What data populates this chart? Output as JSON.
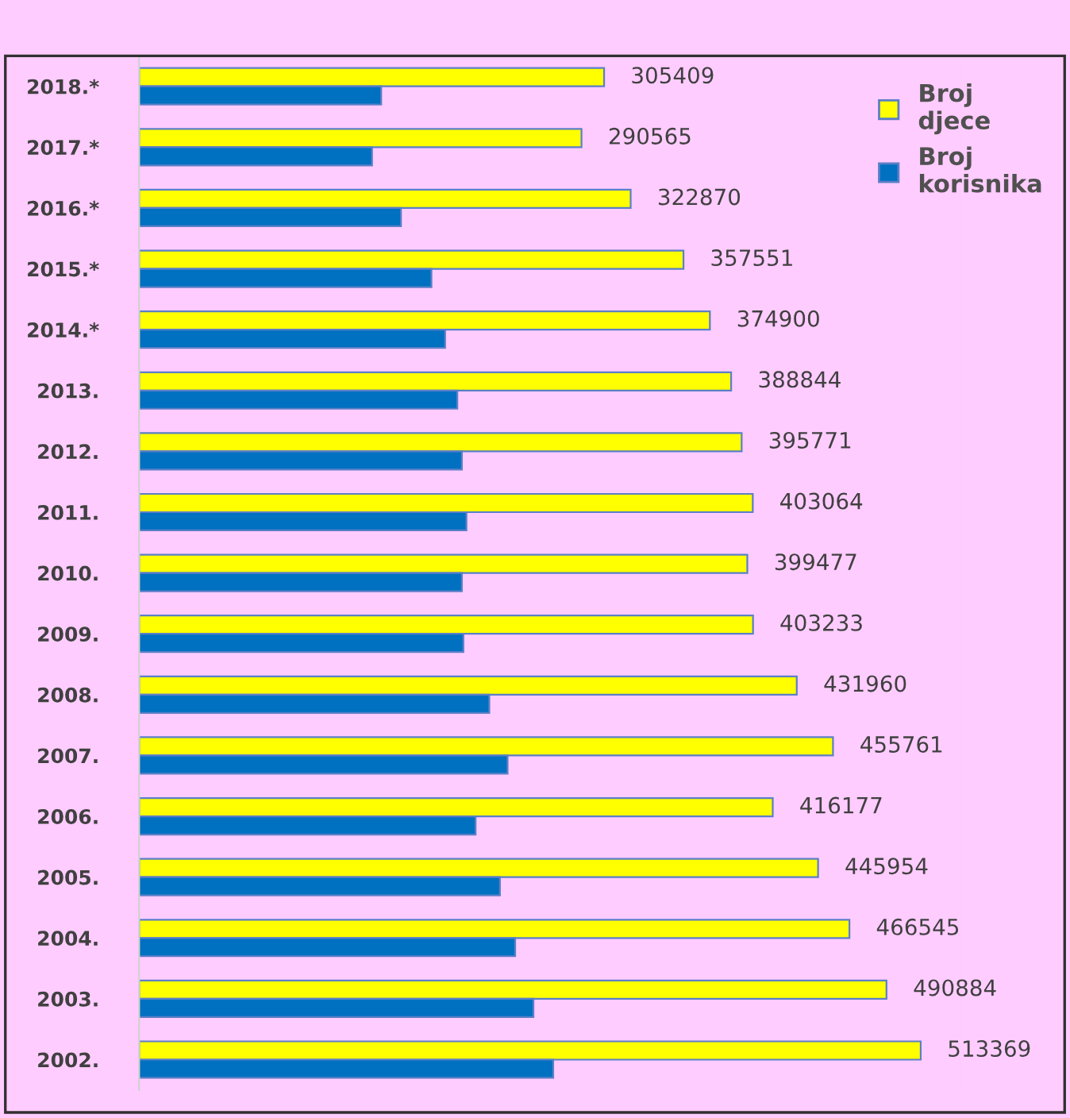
{
  "chart_data": {
    "type": "bar",
    "orientation": "horizontal",
    "categories": [
      "2018.*",
      "2017.*",
      "2016.*",
      "2015.*",
      "2014.*",
      "2013.",
      "2012.",
      "2011.",
      "2010.",
      "2009.",
      "2008.",
      "2007.",
      "2006.",
      "2005.",
      "2004.",
      "2003.",
      "2002."
    ],
    "series": [
      {
        "name": "Broj djece",
        "color": "#ffff00",
        "values": [
          305409,
          290565,
          322870,
          357551,
          374900,
          388844,
          395771,
          403064,
          399477,
          403233,
          431960,
          455761,
          416177,
          445954,
          466545,
          490884,
          513369
        ],
        "value_labels": [
          "305409",
          "290565",
          "322870",
          "357551",
          "374900",
          "388844",
          "395771",
          "403064",
          "399477",
          "403233",
          "431960",
          "455761",
          "416177",
          "445954",
          "466545",
          "490884",
          "513369"
        ]
      },
      {
        "name": "Broj korisnika",
        "color": "#0070c0",
        "values": [
          159000,
          153000,
          172000,
          192000,
          201000,
          209000,
          212000,
          215000,
          212000,
          213000,
          230000,
          242000,
          221000,
          237000,
          247000,
          259000,
          272000
        ]
      }
    ],
    "tick_labels": "y",
    "grid": false,
    "legend": "top right"
  }
}
